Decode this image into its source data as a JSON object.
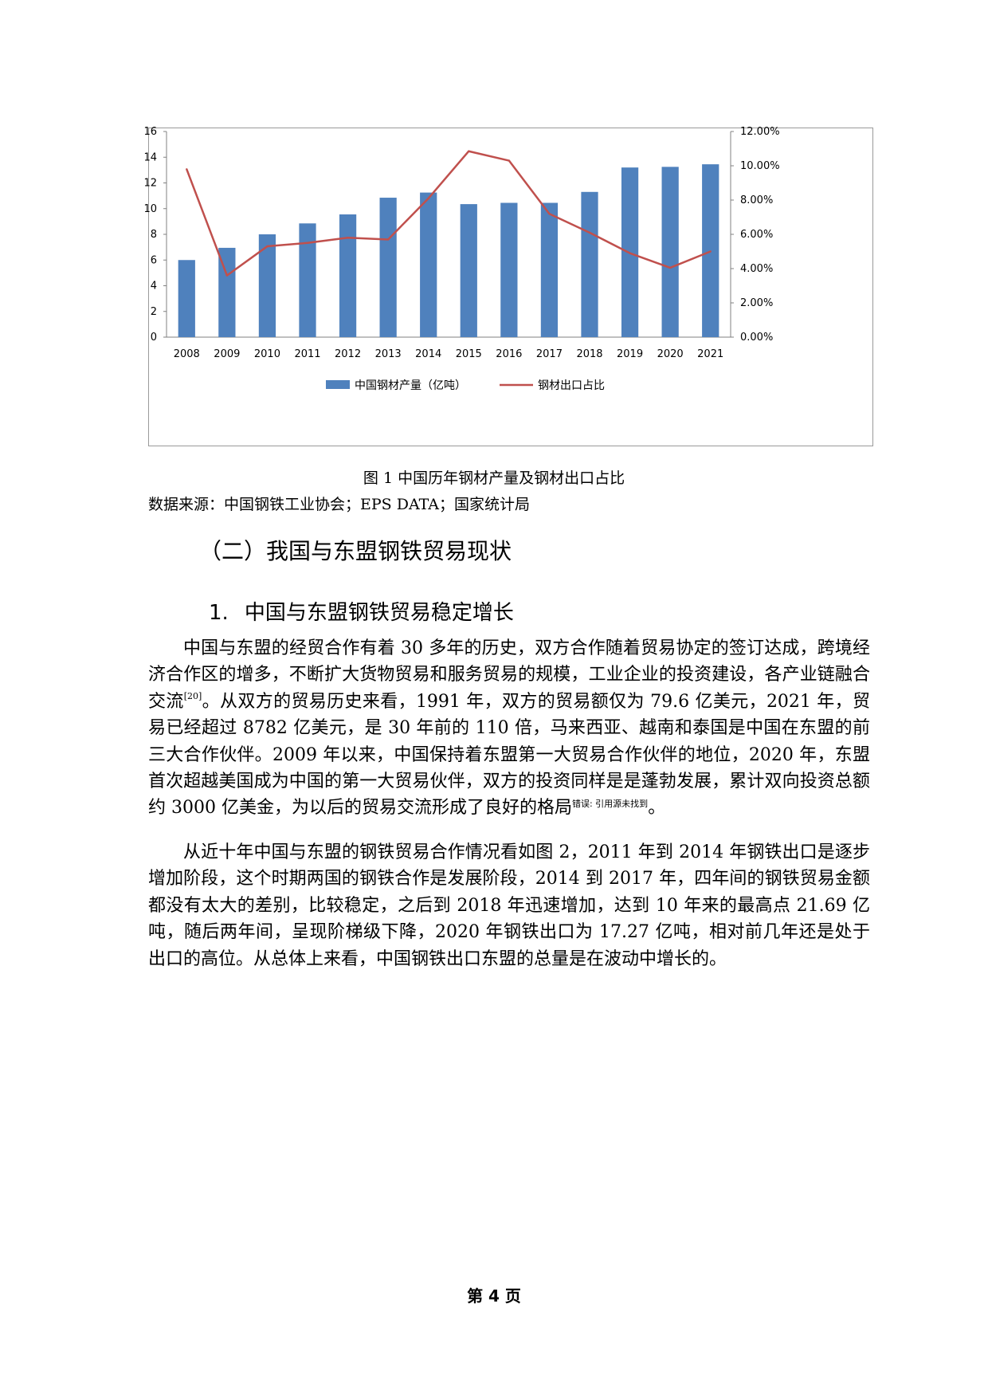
{
  "chart_data": {
    "type": "bar",
    "categories": [
      "2008",
      "2009",
      "2010",
      "2011",
      "2012",
      "2013",
      "2014",
      "2015",
      "2016",
      "2017",
      "2018",
      "2019",
      "2020",
      "2021"
    ],
    "series": [
      {
        "name": "中国钢材产量（亿吨）",
        "type": "bar",
        "axis": "left",
        "color": "#4f81bd",
        "values": [
          6.0,
          6.95,
          8.0,
          8.85,
          9.55,
          10.85,
          11.25,
          10.35,
          10.45,
          10.45,
          11.3,
          13.2,
          13.25,
          13.45
        ]
      },
      {
        "name": "钢材出口占比",
        "type": "line",
        "axis": "right",
        "color": "#c0504d",
        "values": [
          9.8,
          3.6,
          5.3,
          5.5,
          5.8,
          5.7,
          8.1,
          10.85,
          10.3,
          7.2,
          6.1,
          4.9,
          4.05,
          5.0
        ]
      }
    ],
    "ylim_left": [
      0,
      16
    ],
    "yticks_left": [
      "0",
      "2",
      "4",
      "6",
      "8",
      "10",
      "12",
      "14",
      "16"
    ],
    "ylim_right": [
      0,
      12
    ],
    "yticks_right": [
      "0.00%",
      "2.00%",
      "4.00%",
      "6.00%",
      "8.00%",
      "10.00%",
      "12.00%"
    ],
    "legend_position": "bottom",
    "grid": true
  },
  "caption": "图 1 中国历年钢材产量及钢材出口占比",
  "source": "数据来源：中国钢铁工业协会；EPS DATA；国家统计局",
  "heading2": "（二）我国与东盟钢铁贸易现状",
  "heading3": {
    "number": "1.",
    "text": "中国与东盟钢铁贸易稳定增长"
  },
  "paragraph1": {
    "part1": "中国与东盟的经贸合作有着 30 多年的历史，双方合作随着贸易协定的签订达成，跨境经济合作区的增多，不断扩大货物贸易和服务贸易的规模，工业企业的投资建设，各产业链融合交流",
    "ref": "[20]",
    "part2": "。从双方的贸易历史来看，1991 年，双方的贸易额仅为 79.6 亿美元，2021 年，贸易已经超过 8782 亿美元，是 30 年前的 110 倍，马来西亚、越南和泰国是中国在东盟的前三大合作伙伴。2009 年以来，中国保持着东盟第一大贸易合作伙伴的地位，2020 年，东盟首次超越美国成为中国的第一大贸易伙伴，双方的投资同样是是蓬勃发展，累计双向投资总额约 3000 亿美金，为以后的贸易交流形成了良好的格局",
    "error": "错误: 引用源未找到",
    "end": "。"
  },
  "paragraph2": "从近十年中国与东盟的钢铁贸易合作情况看如图 2，2011 年到 2014 年钢铁出口是逐步增加阶段，这个时期两国的钢铁合作是发展阶段，2014 到 2017 年，四年间的钢铁贸易金额都没有太大的差别，比较稳定，之后到 2018 年迅速增加，达到 10 年来的最高点 21.69 亿吨，随后两年间，呈现阶梯级下降，2020 年钢铁出口为 17.27 亿吨，相对前几年还是处于出口的高位。从总体上来看，中国钢铁出口东盟的总量是在波动中增长的。",
  "footer": "第 4 页"
}
